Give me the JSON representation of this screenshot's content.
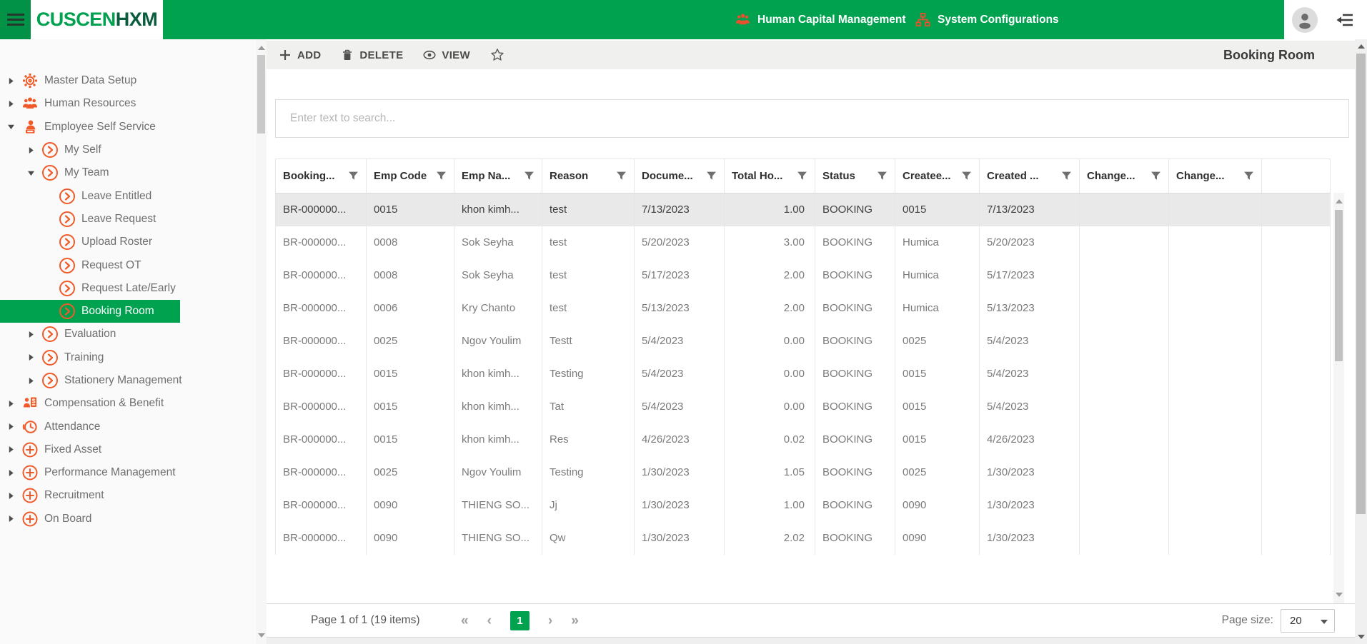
{
  "colors": {
    "brand_green": "#00a24f",
    "brand_dark_green": "#0a5c3c",
    "icon_orange": "#f05a28",
    "nav_icon_orange": "#e8502e",
    "selected_row_bg": "#e9e9e9"
  },
  "header": {
    "logo_primary": "CUSCEN",
    "logo_secondary": "HXM",
    "nav": [
      {
        "label": "Human Capital Management",
        "icon": "people"
      },
      {
        "label": "System Configurations",
        "icon": "sitemap"
      }
    ]
  },
  "sidebar": {
    "items": [
      {
        "label": "Master Data Setup",
        "icon": "gear",
        "level": 0,
        "caret": "collapsed",
        "selected": false
      },
      {
        "label": "Human Resources",
        "icon": "people",
        "level": 0,
        "caret": "collapsed",
        "selected": false
      },
      {
        "label": "Employee Self Service",
        "icon": "person-desk",
        "level": 0,
        "caret": "expanded",
        "selected": false
      },
      {
        "label": "My Self",
        "icon": "circle-chevron",
        "level": 1,
        "caret": "collapsed",
        "selected": false
      },
      {
        "label": "My Team",
        "icon": "circle-chevron",
        "level": 1,
        "caret": "expanded",
        "selected": false
      },
      {
        "label": "Leave Entitled",
        "icon": "circle-chevron",
        "level": 2,
        "caret": "none",
        "selected": false
      },
      {
        "label": "Leave Request",
        "icon": "circle-chevron",
        "level": 2,
        "caret": "none",
        "selected": false
      },
      {
        "label": "Upload Roster",
        "icon": "circle-chevron",
        "level": 2,
        "caret": "none",
        "selected": false
      },
      {
        "label": "Request OT",
        "icon": "circle-chevron",
        "level": 2,
        "caret": "none",
        "selected": false
      },
      {
        "label": "Request Late/Early",
        "icon": "circle-chevron",
        "level": 2,
        "caret": "none",
        "selected": false
      },
      {
        "label": "Booking Room",
        "icon": "circle-chevron",
        "level": 2,
        "caret": "none",
        "selected": true
      },
      {
        "label": "Evaluation",
        "icon": "circle-chevron",
        "level": 1,
        "caret": "collapsed",
        "selected": false
      },
      {
        "label": "Training",
        "icon": "circle-chevron",
        "level": 1,
        "caret": "collapsed",
        "selected": false
      },
      {
        "label": "Stationery Management",
        "icon": "circle-chevron",
        "level": 1,
        "caret": "collapsed",
        "selected": false
      },
      {
        "label": "Compensation & Benefit",
        "icon": "money",
        "level": 0,
        "caret": "collapsed",
        "selected": false
      },
      {
        "label": "Attendance",
        "icon": "clock",
        "level": 0,
        "caret": "collapsed",
        "selected": false
      },
      {
        "label": "Fixed Asset",
        "icon": "plus-circle",
        "level": 0,
        "caret": "collapsed",
        "selected": false
      },
      {
        "label": "Performance Management",
        "icon": "plus-circle",
        "level": 0,
        "caret": "collapsed",
        "selected": false
      },
      {
        "label": "Recruitment",
        "icon": "plus-circle",
        "level": 0,
        "caret": "collapsed",
        "selected": false
      },
      {
        "label": "On Board",
        "icon": "plus-circle",
        "level": 0,
        "caret": "collapsed",
        "selected": false
      }
    ]
  },
  "toolbar": {
    "buttons": [
      {
        "label": "ADD",
        "icon": "plus"
      },
      {
        "label": "DELETE",
        "icon": "trash"
      },
      {
        "label": "VIEW",
        "icon": "eye"
      }
    ],
    "favorite_icon": "star",
    "title": "Booking Room"
  },
  "search": {
    "placeholder": "Enter text to search..."
  },
  "table": {
    "columns": [
      {
        "label": "Booking...",
        "align": "left"
      },
      {
        "label": "Emp Code",
        "align": "left"
      },
      {
        "label": "Emp Na...",
        "align": "left"
      },
      {
        "label": "Reason",
        "align": "left"
      },
      {
        "label": "Docume...",
        "align": "left"
      },
      {
        "label": "Total Ho...",
        "align": "right"
      },
      {
        "label": "Status",
        "align": "left"
      },
      {
        "label": "Createe...",
        "align": "left"
      },
      {
        "label": "Created ...",
        "align": "left"
      },
      {
        "label": "Change...",
        "align": "left"
      },
      {
        "label": "Change...",
        "align": "left"
      }
    ],
    "selected_row": 0,
    "rows": [
      [
        "BR-000000...",
        "0015",
        "khon kimh...",
        "test",
        "7/13/2023",
        "1.00",
        "BOOKING",
        "0015",
        "7/13/2023",
        "",
        ""
      ],
      [
        "BR-000000...",
        "0008",
        "Sok Seyha",
        "test",
        "5/20/2023",
        "3.00",
        "BOOKING",
        "Humica",
        "5/20/2023",
        "",
        ""
      ],
      [
        "BR-000000...",
        "0008",
        "Sok Seyha",
        "test",
        "5/17/2023",
        "2.00",
        "BOOKING",
        "Humica",
        "5/17/2023",
        "",
        ""
      ],
      [
        "BR-000000...",
        "0006",
        "Kry Chanto",
        "test",
        "5/13/2023",
        "2.00",
        "BOOKING",
        "Humica",
        "5/13/2023",
        "",
        ""
      ],
      [
        "BR-000000...",
        "0025",
        "Ngov Youlim",
        "Testt",
        "5/4/2023",
        "0.00",
        "BOOKING",
        "0025",
        "5/4/2023",
        "",
        ""
      ],
      [
        "BR-000000...",
        "0015",
        "khon kimh...",
        "Testing",
        "5/4/2023",
        "0.00",
        "BOOKING",
        "0015",
        "5/4/2023",
        "",
        ""
      ],
      [
        "BR-000000...",
        "0015",
        "khon kimh...",
        "Tat",
        "5/4/2023",
        "0.00",
        "BOOKING",
        "0015",
        "5/4/2023",
        "",
        ""
      ],
      [
        "BR-000000...",
        "0015",
        "khon kimh...",
        "Res",
        "4/26/2023",
        "0.02",
        "BOOKING",
        "0015",
        "4/26/2023",
        "",
        ""
      ],
      [
        "BR-000000...",
        "0025",
        "Ngov Youlim",
        "Testing",
        "1/30/2023",
        "1.05",
        "BOOKING",
        "0025",
        "1/30/2023",
        "",
        ""
      ],
      [
        "BR-000000...",
        "0090",
        "THIENG SO...",
        "Jj",
        "1/30/2023",
        "1.00",
        "BOOKING",
        "0090",
        "1/30/2023",
        "",
        ""
      ],
      [
        "BR-000000...",
        "0090",
        "THIENG SO...",
        "Qw",
        "1/30/2023",
        "2.02",
        "BOOKING",
        "0090",
        "1/30/2023",
        "",
        ""
      ]
    ]
  },
  "pagination": {
    "summary": "Page 1 of 1 (19 items)",
    "current_page": "1",
    "icons": {
      "first": "«",
      "prev": "‹",
      "next": "›",
      "last": "»"
    },
    "page_size_label": "Page size:",
    "page_size": "20"
  }
}
